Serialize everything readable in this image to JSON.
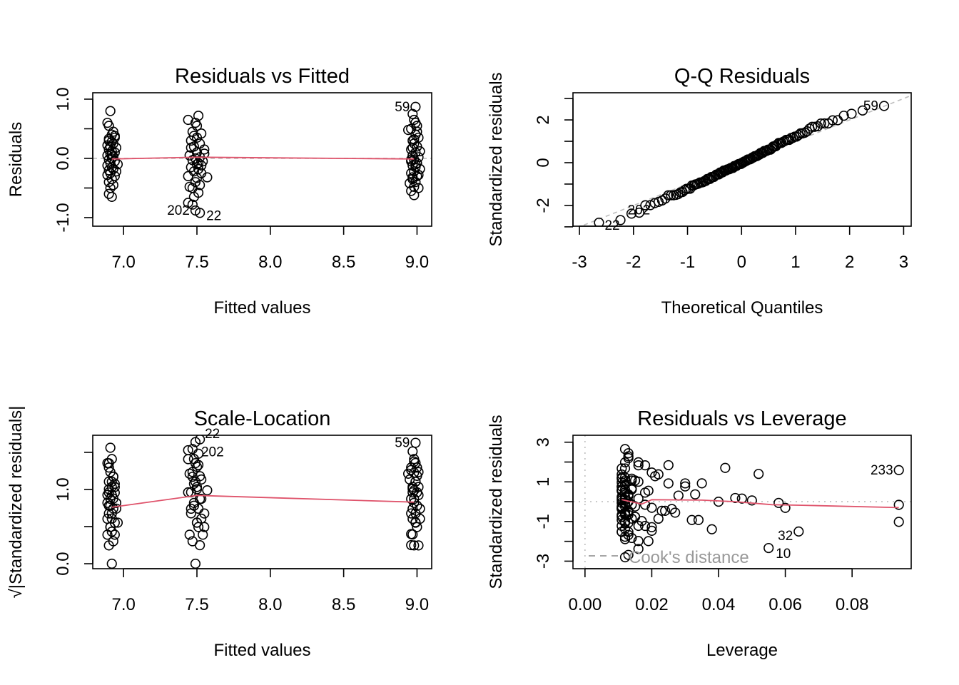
{
  "colors": {
    "smooth": "#DF536B",
    "reference": "#BEBEBE",
    "points": "#000000"
  },
  "points_fields": [
    "fitted",
    "residual",
    "leverage",
    "id"
  ],
  "points": [
    [
      6.91,
      0.8,
      0.013
    ],
    [
      6.89,
      0.6,
      0.018
    ],
    [
      6.9,
      0.55,
      0.012
    ],
    [
      6.93,
      0.45,
      0.022
    ],
    [
      6.92,
      0.4,
      0.011
    ],
    [
      6.94,
      0.35,
      0.015
    ],
    [
      6.9,
      0.3,
      0.025
    ],
    [
      6.92,
      0.28,
      0.012
    ],
    [
      6.93,
      0.25,
      0.03
    ],
    [
      6.89,
      0.22,
      0.014
    ],
    [
      6.91,
      0.2,
      0.011
    ],
    [
      6.95,
      0.18,
      0.019
    ],
    [
      6.9,
      0.15,
      0.012
    ],
    [
      6.92,
      0.12,
      0.033
    ],
    [
      6.94,
      0.1,
      0.013
    ],
    [
      6.91,
      0.08,
      0.011
    ],
    [
      6.89,
      0.05,
      0.016
    ],
    [
      6.93,
      0.03,
      0.012
    ],
    [
      6.92,
      0.0,
      0.04
    ],
    [
      6.9,
      -0.02,
      0.011
    ],
    [
      6.94,
      -0.05,
      0.014
    ],
    [
      6.91,
      -0.08,
      0.012
    ],
    [
      6.96,
      -0.1,
      0.02
    ],
    [
      6.89,
      -0.12,
      0.011
    ],
    [
      6.92,
      -0.15,
      0.013
    ],
    [
      6.93,
      -0.18,
      0.027
    ],
    [
      6.9,
      -0.2,
      0.012
    ],
    [
      6.91,
      -0.25,
      0.015
    ],
    [
      6.94,
      -0.3,
      0.011
    ],
    [
      6.92,
      -0.35,
      0.013
    ],
    [
      6.9,
      -0.4,
      0.018
    ],
    [
      6.93,
      -0.45,
      0.012
    ],
    [
      6.91,
      -0.5,
      0.011
    ],
    [
      6.9,
      -0.6,
      0.014
    ],
    [
      6.92,
      -0.65,
      0.016
    ],
    [
      6.94,
      0.38,
      0.011
    ],
    [
      6.89,
      -0.28,
      0.022
    ],
    [
      6.92,
      0.06,
      0.045
    ],
    [
      6.95,
      -0.22,
      0.012
    ],
    [
      6.9,
      0.33,
      0.016
    ],
    [
      7.44,
      0.65,
      0.012
    ],
    [
      7.51,
      0.72,
      0.013
    ],
    [
      7.49,
      0.6,
      0.016
    ],
    [
      7.47,
      0.45,
      0.011
    ],
    [
      7.53,
      0.42,
      0.021
    ],
    [
      7.5,
      0.35,
      0.012
    ],
    [
      7.46,
      0.3,
      0.035
    ],
    [
      7.52,
      0.25,
      0.011
    ],
    [
      7.48,
      0.2,
      0.014
    ],
    [
      7.55,
      0.15,
      0.012
    ],
    [
      7.5,
      0.1,
      0.028
    ],
    [
      7.45,
      0.05,
      0.011
    ],
    [
      7.52,
      0.02,
      0.05
    ],
    [
      7.49,
      0.0,
      0.013
    ],
    [
      7.47,
      -0.03,
      0.012
    ],
    [
      7.54,
      -0.05,
      0.018
    ],
    [
      7.5,
      -0.1,
      0.011
    ],
    [
      7.46,
      -0.15,
      0.024
    ],
    [
      7.51,
      -0.18,
      0.013
    ],
    [
      7.48,
      -0.22,
      0.011
    ],
    [
      7.53,
      -0.25,
      0.015
    ],
    [
      7.44,
      -0.3,
      0.032
    ],
    [
      7.5,
      -0.33,
      0.012
    ],
    [
      7.57,
      -0.32,
      0.017
    ],
    [
      7.49,
      -0.4,
      0.011
    ],
    [
      7.52,
      -0.45,
      0.038
    ],
    [
      7.47,
      -0.5,
      0.013
    ],
    [
      7.51,
      -0.58,
      0.012
    ],
    [
      7.48,
      -0.65,
      0.019
    ],
    [
      7.44,
      -0.75,
      0.055,
      "10"
    ],
    [
      7.47,
      -0.78,
      0.016
    ],
    [
      7.49,
      -0.88,
      0.013,
      "202"
    ],
    [
      7.52,
      -0.92,
      0.012,
      "22"
    ],
    [
      7.5,
      0.55,
      0.042
    ],
    [
      7.46,
      0.18,
      0.011
    ],
    [
      7.53,
      -0.12,
      0.026
    ],
    [
      7.48,
      0.38,
      0.014
    ],
    [
      7.51,
      -0.08,
      0.011
    ],
    [
      7.55,
      0.08,
      0.012
    ],
    [
      7.45,
      -0.48,
      0.02
    ],
    [
      8.99,
      0.87,
      0.012,
      "59"
    ],
    [
      8.97,
      0.75,
      0.013
    ],
    [
      8.98,
      0.65,
      0.016
    ],
    [
      9.0,
      0.55,
      0.011
    ],
    [
      8.94,
      0.48,
      0.02
    ],
    [
      8.96,
      0.5,
      0.094,
      "233"
    ],
    [
      8.99,
      0.4,
      0.012
    ],
    [
      9.01,
      0.35,
      0.014
    ],
    [
      8.97,
      0.3,
      0.03
    ],
    [
      8.98,
      0.25,
      0.011
    ],
    [
      9.0,
      0.2,
      0.012
    ],
    [
      8.96,
      0.15,
      0.018
    ],
    [
      8.99,
      0.1,
      0.013
    ],
    [
      8.97,
      0.05,
      0.047
    ],
    [
      9.01,
      0.02,
      0.011
    ],
    [
      8.98,
      -0.02,
      0.012
    ],
    [
      8.96,
      -0.05,
      0.094
    ],
    [
      9.0,
      -0.08,
      0.015
    ],
    [
      8.97,
      -0.12,
      0.011
    ],
    [
      8.99,
      -0.15,
      0.023
    ],
    [
      9.02,
      -0.18,
      0.012
    ],
    [
      8.98,
      -0.22,
      0.013
    ],
    [
      8.96,
      -0.25,
      0.011
    ],
    [
      9.0,
      -0.3,
      0.034
    ],
    [
      8.97,
      -0.35,
      0.012
    ],
    [
      8.99,
      -0.4,
      0.016
    ],
    [
      8.98,
      -0.48,
      0.064,
      "32"
    ],
    [
      9.01,
      -0.5,
      0.011
    ],
    [
      8.96,
      -0.55,
      0.013
    ],
    [
      8.98,
      -0.62,
      0.012
    ],
    [
      8.97,
      -0.32,
      0.094
    ],
    [
      9.0,
      0.45,
      0.052
    ],
    [
      8.95,
      -0.42,
      0.02
    ],
    [
      8.99,
      -0.1,
      0.06
    ],
    [
      9.02,
      0.12,
      0.013
    ],
    [
      8.98,
      0.32,
      0.011
    ],
    [
      8.96,
      -0.02,
      0.058
    ],
    [
      9.01,
      -0.28,
      0.014
    ],
    [
      8.97,
      0.18,
      0.011
    ],
    [
      8.99,
      0.6,
      0.025
    ]
  ],
  "chart_data": [
    {
      "type": "scatter",
      "kind": "resid_fitted",
      "title": "Residuals vs Fitted",
      "xlabel": "Fitted values",
      "ylabel": "Residuals",
      "xlim": [
        6.79,
        9.1
      ],
      "ylim": [
        -1.145,
        1.108
      ],
      "xticks": [
        {
          "v": 7.0,
          "label": "7.0"
        },
        {
          "v": 7.5,
          "label": "7.5"
        },
        {
          "v": 8.0,
          "label": "8.0"
        },
        {
          "v": 8.5,
          "label": "8.5"
        },
        {
          "v": 9.0,
          "label": "9.0"
        }
      ],
      "yticks": [
        {
          "v": -1.0,
          "label": "-1.0"
        },
        {
          "v": -0.5,
          "label": ""
        },
        {
          "v": 0.0,
          "label": "0.0"
        },
        {
          "v": 0.5,
          "label": ""
        },
        {
          "v": 1.0,
          "label": "1.0"
        }
      ],
      "labeled_ids": [
        "59",
        "202",
        "22"
      ],
      "reference_h": 0,
      "smooth": [
        [
          6.92,
          -0.01
        ],
        [
          7.5,
          0.02
        ],
        [
          8.98,
          -0.01
        ]
      ]
    },
    {
      "type": "scatter",
      "kind": "qq",
      "title": "Q-Q Residuals",
      "xlabel": "Theoretical Quantiles",
      "ylabel": "Standardized residuals",
      "xlim": [
        -3.12,
        3.14
      ],
      "ylim": [
        -2.97,
        3.27
      ],
      "xticks": [
        {
          "v": -3,
          "label": "-3"
        },
        {
          "v": -2,
          "label": "-2"
        },
        {
          "v": -1,
          "label": "-1"
        },
        {
          "v": 0,
          "label": "0"
        },
        {
          "v": 1,
          "label": "1"
        },
        {
          "v": 2,
          "label": "2"
        },
        {
          "v": 3,
          "label": "3"
        }
      ],
      "yticks": [
        {
          "v": -3,
          "label": ""
        },
        {
          "v": -2,
          "label": "-2"
        },
        {
          "v": -1,
          "label": ""
        },
        {
          "v": 0,
          "label": "0"
        },
        {
          "v": 1,
          "label": ""
        },
        {
          "v": 2,
          "label": "2"
        },
        {
          "v": 3,
          "label": ""
        }
      ],
      "labeled_ids": [
        "22",
        "202",
        "59"
      ]
    },
    {
      "type": "scatter",
      "kind": "scale_location",
      "title": "Scale-Location",
      "xlabel": "Fitted values",
      "ylabel": "√|Standardized residuals|",
      "xlim": [
        6.79,
        9.1
      ],
      "ylim": [
        -0.067,
        1.73
      ],
      "xticks": [
        {
          "v": 7.0,
          "label": "7.0"
        },
        {
          "v": 7.5,
          "label": "7.5"
        },
        {
          "v": 8.0,
          "label": "8.0"
        },
        {
          "v": 8.5,
          "label": "8.5"
        },
        {
          "v": 9.0,
          "label": "9.0"
        }
      ],
      "yticks": [
        {
          "v": 0.0,
          "label": "0.0"
        },
        {
          "v": 0.5,
          "label": ""
        },
        {
          "v": 1.0,
          "label": "1.0"
        },
        {
          "v": 1.5,
          "label": ""
        }
      ],
      "labeled_ids": [
        "22",
        "202",
        "59"
      ],
      "smooth": [
        [
          6.92,
          0.76
        ],
        [
          7.5,
          0.92
        ],
        [
          8.98,
          0.83
        ]
      ]
    },
    {
      "type": "scatter",
      "kind": "resid_leverage",
      "title": "Residuals vs Leverage",
      "xlabel": "Leverage",
      "ylabel": "Standardized residuals",
      "xlim": [
        -0.0036,
        0.0977
      ],
      "ylim": [
        -3.38,
        3.35
      ],
      "xticks": [
        {
          "v": 0.0,
          "label": "0.00"
        },
        {
          "v": 0.02,
          "label": "0.02"
        },
        {
          "v": 0.04,
          "label": "0.04"
        },
        {
          "v": 0.06,
          "label": "0.06"
        },
        {
          "v": 0.08,
          "label": "0.08"
        }
      ],
      "yticks": [
        {
          "v": -3,
          "label": "-3"
        },
        {
          "v": -2,
          "label": ""
        },
        {
          "v": -1,
          "label": "-1"
        },
        {
          "v": 0,
          "label": ""
        },
        {
          "v": 1,
          "label": "1"
        },
        {
          "v": 2,
          "label": ""
        },
        {
          "v": 3,
          "label": "3"
        }
      ],
      "labeled_ids": [
        "233",
        "10",
        "32"
      ],
      "reference_h": 0,
      "reference_v": 0,
      "legend": "Cook's distance",
      "smooth": [
        [
          0.011,
          0.1
        ],
        [
          0.017,
          -0.12
        ],
        [
          0.02,
          0.1
        ],
        [
          0.035,
          0.08
        ],
        [
          0.045,
          0.0
        ],
        [
          0.056,
          -0.15
        ],
        [
          0.065,
          -0.18
        ],
        [
          0.094,
          -0.3
        ]
      ]
    }
  ]
}
